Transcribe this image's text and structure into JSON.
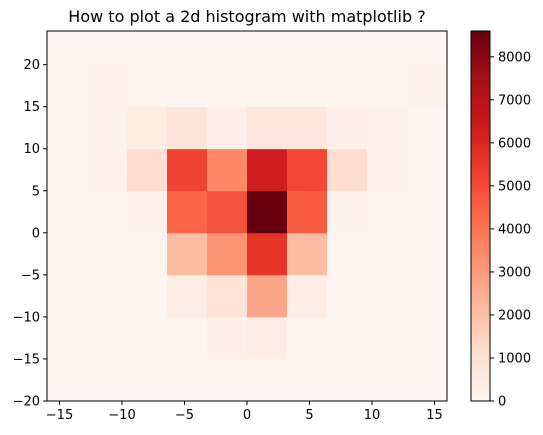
{
  "chart_data": {
    "type": "heatmap",
    "title": "How to plot a 2d histogram with matplotlib ?",
    "xlabel": "",
    "ylabel": "",
    "xlim": [
      -16,
      16
    ],
    "ylim": [
      -20,
      24
    ],
    "xticks": [
      -15,
      -10,
      -5,
      0,
      5,
      10,
      15
    ],
    "yticks": [
      -20,
      -15,
      -10,
      -5,
      0,
      5,
      10,
      15,
      20
    ],
    "x_edges": [
      -16,
      -12.8,
      -9.6,
      -6.4,
      -3.2,
      0,
      3.2,
      6.4,
      9.6,
      12.8,
      16
    ],
    "y_edges": [
      -20,
      -15,
      -10,
      -5,
      0,
      5,
      10,
      15,
      20,
      24
    ],
    "colormap": "Reds",
    "vmin": 0,
    "vmax": 8600,
    "colorbar_ticks": [
      0,
      1000,
      2000,
      3000,
      4000,
      5000,
      6000,
      7000,
      8000
    ],
    "counts": [
      [
        0,
        0,
        0,
        0,
        0,
        0,
        0,
        0,
        0,
        0
      ],
      [
        0,
        0,
        0,
        0,
        250,
        400,
        0,
        0,
        0,
        0
      ],
      [
        0,
        0,
        0,
        450,
        900,
        2700,
        400,
        0,
        0,
        0
      ],
      [
        0,
        0,
        0,
        2100,
        3200,
        5600,
        2100,
        0,
        0,
        0
      ],
      [
        0,
        0,
        150,
        4400,
        4800,
        8600,
        4600,
        150,
        0,
        0
      ],
      [
        0,
        150,
        1100,
        5200,
        3500,
        6300,
        5100,
        1100,
        150,
        0
      ],
      [
        0,
        150,
        450,
        800,
        300,
        700,
        700,
        300,
        150,
        0
      ],
      [
        0,
        150,
        0,
        0,
        0,
        0,
        0,
        0,
        0,
        150
      ],
      [
        0,
        0,
        0,
        0,
        0,
        0,
        0,
        0,
        0,
        0
      ]
    ]
  }
}
